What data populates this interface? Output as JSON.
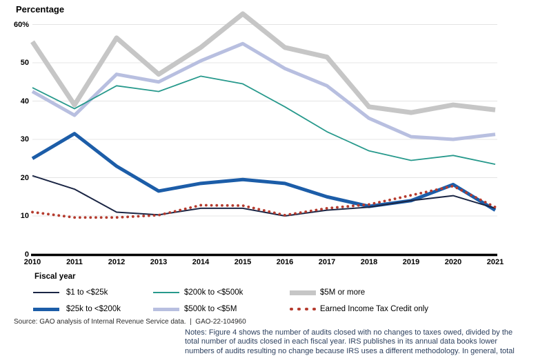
{
  "title": "Percentage",
  "x_axis_label": "Fiscal year",
  "source_line": "Source: GAO analysis of Internal Revenue Service data.  |  GAO-22-104960",
  "notes_lines": [
    "Notes: Figure 4 shows the number of audits closed with no changes to taxes owed, divided by the",
    "total number of audits closed in each fiscal year. IRS publishes in its annual data books lower",
    "numbers of audits resulting no change because IRS uses a different methodology. In general, total"
  ],
  "colors": {
    "gridline": "#e4e4e4",
    "axis": "#000000",
    "notes_text": "#2b3f5e"
  },
  "chart_data": {
    "type": "line",
    "title": "Percentage",
    "xlabel": "Fiscal year",
    "ylabel": "Percentage",
    "x": [
      2010,
      2011,
      2012,
      2013,
      2014,
      2015,
      2016,
      2017,
      2018,
      2019,
      2020,
      2021
    ],
    "y_ticks": [
      0,
      10,
      20,
      30,
      40,
      50,
      60
    ],
    "y_tick_labels": [
      "0",
      "10",
      "20",
      "30",
      "40",
      "50",
      "60%"
    ],
    "ylim": [
      0,
      65
    ],
    "grid": true,
    "legend_position": "bottom",
    "series": [
      {
        "name": "$1 to <$25k",
        "color": "#1a2544",
        "width": 2,
        "style": "solid",
        "values": [
          20.5,
          17.0,
          11.0,
          10.3,
          12.0,
          12.0,
          10.0,
          11.5,
          12.3,
          14.0,
          15.3,
          12.0
        ]
      },
      {
        "name": "$25k to <$200k",
        "color": "#1c5da8",
        "width": 5,
        "style": "solid",
        "values": [
          25.0,
          31.5,
          23.0,
          16.5,
          18.5,
          19.5,
          18.5,
          15.0,
          12.5,
          14.0,
          18.2,
          11.5
        ]
      },
      {
        "name": "$200k to <$500k",
        "color": "#27998c",
        "width": 1.8,
        "style": "solid",
        "values": [
          43.5,
          38.0,
          44.0,
          42.5,
          46.5,
          44.5,
          38.5,
          32.0,
          27.0,
          24.5,
          25.8,
          23.5
        ]
      },
      {
        "name": "$500k to <$5M",
        "color": "#b8bfe0",
        "width": 5,
        "style": "solid",
        "values": [
          42.5,
          36.3,
          47.0,
          45.0,
          50.5,
          55.0,
          48.5,
          44.0,
          35.5,
          30.7,
          30.0,
          31.3
        ]
      },
      {
        "name": "$5M or more",
        "color": "#c6c6c6",
        "width": 7,
        "style": "solid",
        "values": [
          55.5,
          39.0,
          56.5,
          47.0,
          54.0,
          62.8,
          54.0,
          51.5,
          38.5,
          37.0,
          39.0,
          37.7
        ]
      },
      {
        "name": "Earned Income Tax Credit only",
        "color": "#b53b2e",
        "width": 3.8,
        "style": "dotted",
        "values": [
          11.0,
          9.6,
          9.6,
          10.2,
          12.8,
          12.7,
          10.2,
          12.0,
          13.0,
          15.4,
          17.8,
          12.3
        ]
      }
    ]
  }
}
